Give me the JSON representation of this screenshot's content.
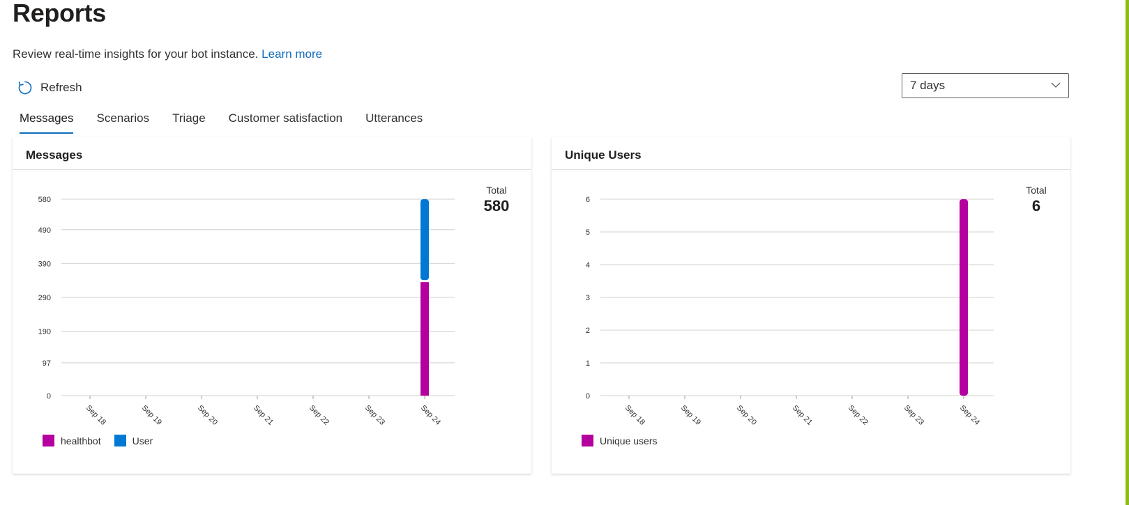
{
  "page": {
    "title": "Reports",
    "description": "Review real-time insights for your bot instance.",
    "learn_more": "Learn more",
    "refresh_label": "Refresh",
    "range_selected": "7 days"
  },
  "tabs": [
    {
      "label": "Messages",
      "active": true
    },
    {
      "label": "Scenarios",
      "active": false
    },
    {
      "label": "Triage",
      "active": false
    },
    {
      "label": "Customer satisfaction",
      "active": false
    },
    {
      "label": "Utterances",
      "active": false
    }
  ],
  "cards": {
    "messages": {
      "title": "Messages",
      "total_label": "Total",
      "total_value": "580"
    },
    "users": {
      "title": "Unique Users",
      "total_label": "Total",
      "total_value": "6"
    }
  },
  "colors": {
    "accent": "#0f6cbd",
    "healthbot": "#b4009e",
    "user": "#0078d4"
  },
  "chart_data": [
    {
      "type": "bar",
      "stacked": true,
      "title": "Messages",
      "categories": [
        "Sep 18",
        "Sep 19",
        "Sep 20",
        "Sep 21",
        "Sep 22",
        "Sep 23",
        "Sep 24"
      ],
      "yticks": [
        0,
        97,
        190,
        290,
        390,
        490,
        580
      ],
      "ylim": [
        0,
        580
      ],
      "grid": true,
      "legend_position": "bottom-left",
      "series": [
        {
          "name": "healthbot",
          "color": "#b4009e",
          "values": [
            0,
            0,
            0,
            0,
            0,
            0,
            335
          ]
        },
        {
          "name": "User",
          "color": "#0078d4",
          "values": [
            0,
            0,
            0,
            0,
            0,
            0,
            245
          ]
        }
      ]
    },
    {
      "type": "bar",
      "stacked": false,
      "title": "Unique Users",
      "categories": [
        "Sep 18",
        "Sep 19",
        "Sep 20",
        "Sep 21",
        "Sep 22",
        "Sep 23",
        "Sep 24"
      ],
      "yticks": [
        0,
        1,
        2,
        3,
        4,
        5,
        6
      ],
      "ylim": [
        0,
        6
      ],
      "grid": true,
      "legend_position": "bottom-left",
      "series": [
        {
          "name": "Unique users",
          "color": "#b4009e",
          "values": [
            0,
            0,
            0,
            0,
            0,
            0,
            6
          ]
        }
      ]
    }
  ]
}
